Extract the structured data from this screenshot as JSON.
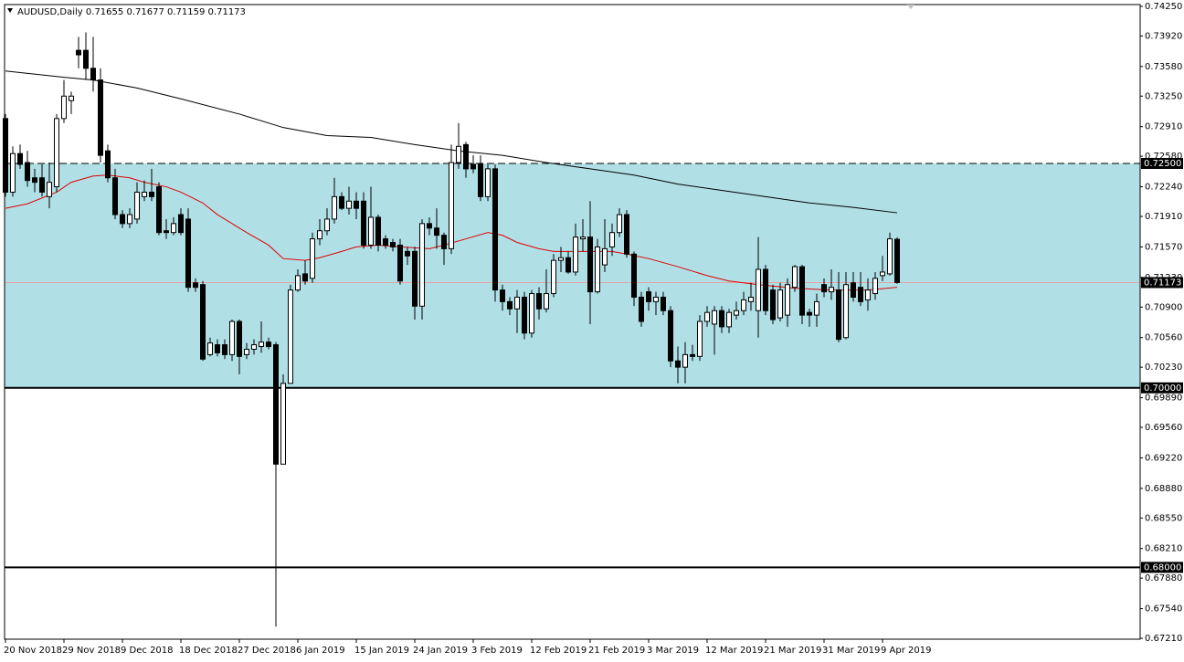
{
  "chart_data": {
    "type": "candlestick",
    "title": "AUDUSD,Daily",
    "categories": [
      "20 Nov 2018",
      null,
      null,
      null,
      null,
      null,
      null,
      null,
      "29 Nov 2018",
      null,
      null,
      null,
      null,
      null,
      null,
      null,
      "9 Dec 2018",
      null,
      null,
      null,
      null,
      null,
      null,
      null,
      "18 Dec 2018",
      null,
      null,
      null,
      null,
      null,
      null,
      null,
      "27 Dec 2018",
      null,
      null,
      null,
      null,
      null,
      null,
      null,
      "6 Jan 2019",
      null,
      null,
      null,
      null,
      null,
      null,
      null,
      "15 Jan 2019",
      null,
      null,
      null,
      null,
      null,
      null,
      null,
      "24 Jan 2019",
      null,
      null,
      null,
      null,
      null,
      null,
      null,
      "3 Feb 2019",
      null,
      null,
      null,
      null,
      null,
      null,
      null,
      "12 Feb 2019",
      null,
      null,
      null,
      null,
      null,
      null,
      null,
      "21 Feb 2019",
      null,
      null,
      null,
      null,
      null,
      null,
      null,
      "3 Mar 2019",
      null,
      null,
      null,
      null,
      null,
      null,
      null,
      "12 Mar 2019",
      null,
      null,
      null,
      null,
      null,
      null,
      null,
      "21 Mar 2019",
      null,
      null,
      null,
      null,
      null,
      null,
      null,
      "31 Mar 2019",
      null,
      null,
      null,
      null,
      null,
      null,
      null,
      "9 Apr 2019",
      null,
      null
    ],
    "open": [
      0.73,
      0.7218,
      0.7261,
      0.7251,
      0.7234,
      0.7234,
      0.7213,
      0.7224,
      0.73,
      0.732,
      0.7376,
      0.7376,
      0.7356,
      0.7343,
      0.7264,
      0.7234,
      0.7193,
      0.7183,
      0.7188,
      0.7213,
      0.7218,
      0.7224,
      0.7175,
      0.7173,
      0.7193,
      0.7188,
      0.7117,
      0.7115,
      0.7037,
      0.7048,
      0.7048,
      0.7037,
      0.7074,
      0.7037,
      0.7043,
      0.7046,
      0.7051,
      0.7048,
      0.6915,
      0.7005,
      0.7109,
      0.7127,
      0.7122,
      0.7166,
      0.7175,
      0.7188,
      0.7213,
      0.72,
      0.7208,
      0.7208,
      0.7159,
      0.719,
      0.7166,
      0.7162,
      0.7159,
      0.7152,
      0.7152,
      0.7091,
      0.7183,
      0.7178,
      0.717,
      0.7155,
      0.7251,
      0.7271,
      0.7249,
      0.7249,
      0.7213,
      0.7244,
      0.7109,
      0.7096,
      0.7088,
      0.7101,
      0.7061,
      0.7105,
      0.7088,
      0.7105,
      0.7142,
      0.7145,
      0.7129,
      0.7166,
      0.7168,
      0.7107,
      0.7137,
      0.7157,
      0.7173,
      0.7193,
      0.7149,
      0.7101,
      0.7107,
      0.7096,
      0.7101,
      0.7086,
      0.703,
      0.7023,
      0.7037,
      0.7035,
      0.7074,
      0.7071,
      0.7086,
      0.7068,
      0.7081,
      0.7086,
      0.7096,
      0.7086,
      0.7132,
      0.7109,
      0.7078,
      0.7081,
      0.7112,
      0.7135,
      0.7084,
      0.7081,
      0.7115,
      0.7107,
      0.7109,
      0.7056,
      0.7117,
      0.7112,
      0.7098,
      0.7105,
      0.7125,
      0.7127,
      0.71655
    ],
    "high": [
      0.7305,
      0.7269,
      0.7271,
      0.7264,
      0.7244,
      0.7249,
      0.7251,
      0.7305,
      0.7343,
      0.733,
      0.7391,
      0.7396,
      0.7391,
      0.7356,
      0.7271,
      0.7244,
      0.7198,
      0.72,
      0.7229,
      0.7231,
      0.7244,
      0.7229,
      0.7188,
      0.719,
      0.72,
      0.72,
      0.7122,
      0.7119,
      0.7056,
      0.7054,
      0.7054,
      0.7076,
      0.7076,
      0.705,
      0.7054,
      0.7074,
      0.7056,
      0.7051,
      0.7015,
      0.7115,
      0.7132,
      0.7142,
      0.7173,
      0.7188,
      0.72,
      0.7234,
      0.7218,
      0.7224,
      0.7218,
      0.7218,
      0.7224,
      0.7193,
      0.717,
      0.7166,
      0.7166,
      0.7157,
      0.7157,
      0.7188,
      0.719,
      0.72,
      0.7173,
      0.7271,
      0.7295,
      0.7274,
      0.7259,
      0.7259,
      0.7249,
      0.7249,
      0.7115,
      0.7101,
      0.7109,
      0.7107,
      0.7109,
      0.7112,
      0.7132,
      0.7149,
      0.7157,
      0.7152,
      0.7183,
      0.7188,
      0.7208,
      0.7166,
      0.7188,
      0.7183,
      0.72,
      0.7198,
      0.7152,
      0.7107,
      0.7112,
      0.7107,
      0.7107,
      0.7091,
      0.7046,
      0.7051,
      0.7048,
      0.7081,
      0.7091,
      0.7091,
      0.7091,
      0.7088,
      0.7096,
      0.7107,
      0.7117,
      0.7168,
      0.7137,
      0.7115,
      0.7117,
      0.7122,
      0.7137,
      0.7137,
      0.7088,
      0.7105,
      0.7122,
      0.7132,
      0.7129,
      0.7129,
      0.7129,
      0.7129,
      0.7122,
      0.7129,
      0.7147,
      0.7173,
      0.71677
    ],
    "low": [
      0.7213,
      0.7213,
      0.7244,
      0.7224,
      0.7218,
      0.7213,
      0.72,
      0.7218,
      0.7295,
      0.7305,
      0.7356,
      0.7343,
      0.733,
      0.7251,
      0.7229,
      0.7188,
      0.7178,
      0.7178,
      0.7183,
      0.7208,
      0.7208,
      0.717,
      0.7166,
      0.717,
      0.717,
      0.7107,
      0.7107,
      0.703,
      0.7035,
      0.7035,
      0.7032,
      0.703,
      0.7015,
      0.7032,
      0.7037,
      0.7039,
      0.7043,
      0.6734,
      0.6915,
      0.7005,
      0.7107,
      0.7115,
      0.7117,
      0.7159,
      0.717,
      0.7183,
      0.7198,
      0.7193,
      0.7188,
      0.7155,
      0.7155,
      0.7152,
      0.7155,
      0.7152,
      0.7115,
      0.7137,
      0.7076,
      0.7076,
      0.717,
      0.7155,
      0.7137,
      0.7149,
      0.7244,
      0.7234,
      0.7239,
      0.7208,
      0.7208,
      0.7096,
      0.7086,
      0.7081,
      0.7061,
      0.7054,
      0.7056,
      0.7076,
      0.7084,
      0.7101,
      0.7129,
      0.7127,
      0.7125,
      0.7152,
      0.7071,
      0.7105,
      0.7129,
      0.7147,
      0.7168,
      0.7145,
      0.7091,
      0.7068,
      0.7086,
      0.7081,
      0.7081,
      0.7023,
      0.7005,
      0.7005,
      0.703,
      0.703,
      0.7068,
      0.7037,
      0.7061,
      0.7061,
      0.7076,
      0.7081,
      0.7086,
      0.7056,
      0.7081,
      0.7071,
      0.7074,
      0.7068,
      0.7107,
      0.7071,
      0.7068,
      0.7068,
      0.7101,
      0.7098,
      0.7051,
      0.7054,
      0.7096,
      0.7091,
      0.7086,
      0.7098,
      0.7119,
      0.7125,
      0.71159
    ],
    "close": [
      0.7218,
      0.7261,
      0.7249,
      0.7231,
      0.7229,
      0.7218,
      0.7229,
      0.73,
      0.7325,
      0.7325,
      0.7371,
      0.7356,
      0.7343,
      0.7259,
      0.7234,
      0.7193,
      0.7183,
      0.7193,
      0.7218,
      0.7218,
      0.7213,
      0.7173,
      0.7173,
      0.7183,
      0.7173,
      0.7112,
      0.7112,
      0.7032,
      0.705,
      0.7039,
      0.7037,
      0.7074,
      0.7035,
      0.7043,
      0.7048,
      0.7051,
      0.7046,
      0.6915,
      0.7005,
      0.7109,
      0.7125,
      0.7119,
      0.7166,
      0.7175,
      0.7188,
      0.7213,
      0.72,
      0.7208,
      0.72,
      0.7159,
      0.719,
      0.7159,
      0.7159,
      0.7157,
      0.7119,
      0.7147,
      0.7091,
      0.7183,
      0.7178,
      0.717,
      0.7155,
      0.7251,
      0.7269,
      0.7244,
      0.7244,
      0.7213,
      0.7244,
      0.7109,
      0.7096,
      0.7088,
      0.7101,
      0.7061,
      0.7105,
      0.7088,
      0.7105,
      0.7142,
      0.7145,
      0.7129,
      0.7168,
      0.7168,
      0.7107,
      0.7157,
      0.7155,
      0.7173,
      0.7193,
      0.7149,
      0.7101,
      0.7074,
      0.7096,
      0.7101,
      0.7086,
      0.703,
      0.7023,
      0.7037,
      0.7035,
      0.7074,
      0.7084,
      0.7086,
      0.7068,
      0.7084,
      0.7086,
      0.7098,
      0.7101,
      0.7132,
      0.7086,
      0.7076,
      0.7109,
      0.7115,
      0.7135,
      0.7081,
      0.7081,
      0.7096,
      0.7107,
      0.7112,
      0.7054,
      0.7115,
      0.7101,
      0.7096,
      0.7109,
      0.7122,
      0.7129,
      0.7166,
      0.71173
    ],
    "lines": [
      {
        "color": "#000000",
        "x": [
          0,
          8,
          12,
          18,
          24,
          32,
          38,
          44,
          50,
          56,
          62,
          68,
          74,
          80,
          86,
          92,
          98,
          104,
          110,
          116,
          122
        ],
        "values": [
          0.7353,
          0.7346,
          0.7343,
          0.7334,
          0.7322,
          0.7305,
          0.729,
          0.7281,
          0.7279,
          0.7271,
          0.7264,
          0.7259,
          0.7251,
          0.7244,
          0.7237,
          0.7227,
          0.722,
          0.7213,
          0.7206,
          0.7201,
          0.7195
        ]
      },
      {
        "color": "#e00000",
        "x": [
          0,
          3,
          7,
          9,
          12,
          14,
          17,
          19,
          22,
          24,
          27,
          29,
          33,
          36,
          38,
          41,
          43,
          46,
          48,
          51,
          54,
          58,
          60,
          63,
          66,
          68,
          70,
          73,
          75,
          79,
          83,
          85,
          88,
          92,
          96,
          99,
          103,
          108,
          113,
          118,
          122
        ],
        "values": [
          0.72,
          0.7205,
          0.7218,
          0.7229,
          0.7236,
          0.7237,
          0.7234,
          0.7229,
          0.7224,
          0.7218,
          0.7206,
          0.7193,
          0.7173,
          0.7159,
          0.7144,
          0.7142,
          0.7145,
          0.7152,
          0.7157,
          0.7159,
          0.7157,
          0.7155,
          0.7159,
          0.7166,
          0.7173,
          0.717,
          0.7162,
          0.7155,
          0.7152,
          0.7152,
          0.7152,
          0.7149,
          0.7144,
          0.7135,
          0.7125,
          0.7119,
          0.7115,
          0.7111,
          0.7109,
          0.7109,
          0.7112
        ]
      }
    ],
    "zone": {
      "from": 0.7,
      "to": 0.725,
      "color": "#b0e0e6"
    },
    "levels": [
      {
        "value": 0.725,
        "label": "0.72500",
        "style": "dashed"
      },
      {
        "value": 0.7,
        "label": "0.70000",
        "style": "solid"
      },
      {
        "value": 0.68,
        "label": "0.68000",
        "style": "solid"
      }
    ],
    "ylim": [
      0.672,
      0.7427
    ],
    "yticks": [
      {
        "value": 0.7425,
        "label": "0.74250"
      },
      {
        "value": 0.7392,
        "label": "0.73920"
      },
      {
        "value": 0.7358,
        "label": "0.73580"
      },
      {
        "value": 0.7325,
        "label": "0.73250"
      },
      {
        "value": 0.7291,
        "label": "0.72910"
      },
      {
        "value": 0.7258,
        "label": "0.72580"
      },
      {
        "value": 0.7224,
        "label": "0.72240"
      },
      {
        "value": 0.7191,
        "label": "0.71910"
      },
      {
        "value": 0.7157,
        "label": "0.71570"
      },
      {
        "value": 0.7123,
        "label": "0.71230"
      },
      {
        "value": 0.709,
        "label": "0.70900"
      },
      {
        "value": 0.7056,
        "label": "0.70560"
      },
      {
        "value": 0.7023,
        "label": "0.70230"
      },
      {
        "value": 0.6989,
        "label": "0.69890"
      },
      {
        "value": 0.6956,
        "label": "0.69560"
      },
      {
        "value": 0.6922,
        "label": "0.69220"
      },
      {
        "value": 0.6888,
        "label": "0.68880"
      },
      {
        "value": 0.6855,
        "label": "0.68550"
      },
      {
        "value": 0.6821,
        "label": "0.68210"
      },
      {
        "value": 0.6788,
        "label": "0.67880"
      },
      {
        "value": 0.6754,
        "label": "0.67540"
      },
      {
        "value": 0.6721,
        "label": "0.67210"
      }
    ]
  }
}
